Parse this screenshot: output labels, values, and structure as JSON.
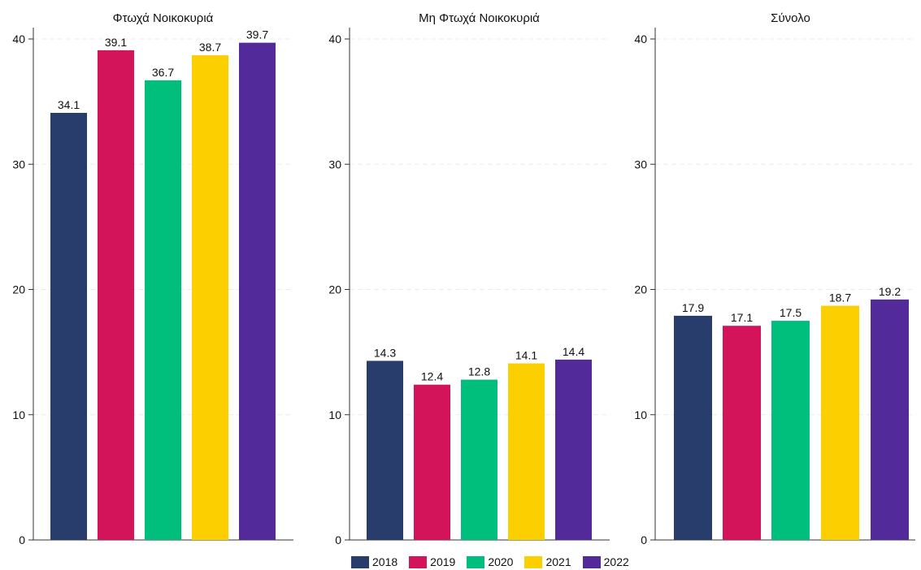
{
  "chart_data": [
    {
      "type": "bar",
      "title": "Φτωχά Νοικοκυριά",
      "categories": [
        "2018",
        "2019",
        "2020",
        "2021",
        "2022"
      ],
      "values": [
        34.1,
        39.1,
        36.7,
        38.7,
        39.7
      ],
      "labels": [
        "34.1",
        "39.1",
        "36.7",
        "38.7",
        "39.7"
      ],
      "ylim": [
        0,
        40
      ],
      "yticks": [
        "0",
        "10",
        "20",
        "30",
        "40"
      ],
      "grid": true
    },
    {
      "type": "bar",
      "title": "Μη Φτωχά Νοικοκυριά",
      "categories": [
        "2018",
        "2019",
        "2020",
        "2021",
        "2022"
      ],
      "values": [
        14.3,
        12.4,
        12.8,
        14.1,
        14.4
      ],
      "labels": [
        "14.3",
        "12.4",
        "12.8",
        "14.1",
        "14.4"
      ],
      "ylim": [
        0,
        40
      ],
      "yticks": [
        "0",
        "10",
        "20",
        "30",
        "40"
      ],
      "grid": true
    },
    {
      "type": "bar",
      "title": "Σύνολο",
      "categories": [
        "2018",
        "2019",
        "2020",
        "2021",
        "2022"
      ],
      "values": [
        17.9,
        17.1,
        17.5,
        18.7,
        19.2
      ],
      "labels": [
        "17.9",
        "17.1",
        "17.5",
        "18.7",
        "19.2"
      ],
      "ylim": [
        0,
        40
      ],
      "yticks": [
        "0",
        "10",
        "20",
        "30",
        "40"
      ],
      "grid": true
    }
  ],
  "legend": {
    "placement": "bottom",
    "items": [
      {
        "label": "2018",
        "color": "#283d6c"
      },
      {
        "label": "2019",
        "color": "#d4145a"
      },
      {
        "label": "2020",
        "color": "#00bf7d"
      },
      {
        "label": "2021",
        "color": "#fcd000"
      },
      {
        "label": "2022",
        "color": "#522a9a"
      }
    ]
  }
}
